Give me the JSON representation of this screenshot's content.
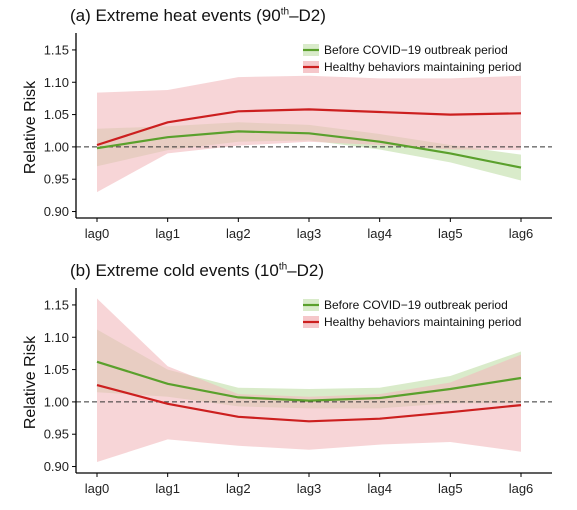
{
  "chart_data": [
    {
      "type": "line",
      "title_prefix": "(a) Extreme heat events (90",
      "title_sup": "th",
      "title_suffix": "–D2)",
      "ylabel": "Relative Risk",
      "xlabel": "",
      "categories": [
        "lag0",
        "lag1",
        "lag2",
        "lag3",
        "lag4",
        "lag5",
        "lag6"
      ],
      "ylim": [
        0.89,
        1.17
      ],
      "yticks": [
        "0.90",
        "0.95",
        "1.00",
        "1.05",
        "1.10",
        "1.15"
      ],
      "reference_line": 1.0,
      "legend_position": "top-right",
      "series": [
        {
          "name": "Before COVID−19 outbreak period",
          "color": "#5aa02c",
          "band_color": "#cfe6bd",
          "values": [
            0.998,
            1.015,
            1.024,
            1.021,
            1.008,
            0.99,
            0.968
          ],
          "lower": [
            0.97,
            0.995,
            1.008,
            1.01,
            0.996,
            0.976,
            0.948
          ],
          "upper": [
            1.028,
            1.032,
            1.038,
            1.034,
            1.02,
            1.003,
            0.988
          ]
        },
        {
          "name": "Healthy behaviors maintaining period",
          "color": "#cc1f1f",
          "band_color": "#f2b9bd",
          "values": [
            1.003,
            1.038,
            1.055,
            1.058,
            1.054,
            1.05,
            1.052
          ],
          "lower": [
            0.93,
            0.99,
            1.002,
            1.008,
            1.003,
            0.996,
            0.995
          ],
          "upper": [
            1.084,
            1.088,
            1.108,
            1.11,
            1.106,
            1.106,
            1.11
          ]
        }
      ]
    },
    {
      "type": "line",
      "title_prefix": "(b) Extreme cold events (10",
      "title_sup": "th",
      "title_suffix": "–D2)",
      "ylabel": "Relative Risk",
      "xlabel": "",
      "categories": [
        "lag0",
        "lag1",
        "lag2",
        "lag3",
        "lag4",
        "lag5",
        "lag6"
      ],
      "ylim": [
        0.89,
        1.17
      ],
      "yticks": [
        "0.90",
        "0.95",
        "1.00",
        "1.05",
        "1.10",
        "1.15"
      ],
      "reference_line": 1.0,
      "legend_position": "top-right",
      "series": [
        {
          "name": "Before COVID−19 outbreak period",
          "color": "#5aa02c",
          "band_color": "#cfe6bd",
          "values": [
            1.062,
            1.028,
            1.007,
            1.002,
            1.006,
            1.02,
            1.037
          ],
          "lower": [
            1.015,
            1.008,
            0.993,
            0.99,
            0.99,
            0.998,
            0.998
          ],
          "upper": [
            1.112,
            1.05,
            1.022,
            1.02,
            1.022,
            1.04,
            1.078
          ]
        },
        {
          "name": "Healthy behaviors maintaining period",
          "color": "#cc1f1f",
          "band_color": "#f2b9bd",
          "values": [
            1.026,
            0.997,
            0.977,
            0.97,
            0.974,
            0.984,
            0.995
          ],
          "lower": [
            0.907,
            0.942,
            0.932,
            0.926,
            0.934,
            0.938,
            0.923
          ],
          "upper": [
            1.16,
            1.055,
            1.012,
            1.008,
            1.012,
            1.03,
            1.073
          ]
        }
      ]
    }
  ]
}
